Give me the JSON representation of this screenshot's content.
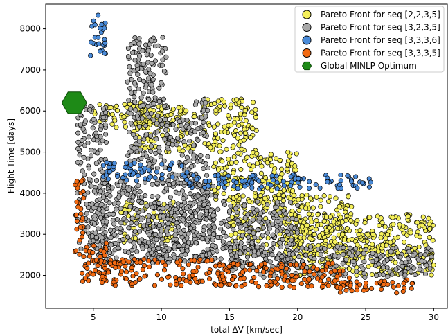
{
  "chart_data": {
    "type": "scatter",
    "title": "",
    "xlabel": "total ΔV [km/sec]",
    "ylabel": "Flight Time [days]",
    "xlim": [
      1.5,
      31
    ],
    "ylim": [
      1200,
      8600
    ],
    "xticks": [
      5,
      10,
      15,
      20,
      25,
      30
    ],
    "yticks": [
      2000,
      3000,
      4000,
      5000,
      6000,
      7000,
      8000
    ],
    "grid": false,
    "legend_position": "top-right",
    "series": [
      {
        "name": "Pareto Front for seq [2,2,3,5]",
        "color": "#f5f05a",
        "marker": "circle",
        "regions": [
          [
            5.0,
            6200,
            10.5,
            5600
          ],
          [
            13.0,
            6300,
            17.0,
            5000
          ],
          [
            13.5,
            5000,
            20.0,
            3800
          ],
          [
            15.0,
            4000,
            24.0,
            2500
          ],
          [
            19.0,
            3500,
            30.0,
            2000
          ],
          [
            8.0,
            6100,
            12.5,
            5000
          ],
          [
            7.0,
            3800,
            11.0,
            2800
          ],
          [
            24.0,
            3000,
            27.0,
            2600
          ]
        ]
      },
      {
        "name": "Pareto Front for seq [3,2,3,5]",
        "color": "#a8a8a8",
        "marker": "circle",
        "regions": [
          [
            3.8,
            6200,
            6.0,
            2300
          ],
          [
            7.5,
            7800,
            10.5,
            4600
          ],
          [
            5.0,
            4300,
            14.0,
            2300
          ],
          [
            9.0,
            3800,
            20.0,
            2300
          ],
          [
            15.0,
            2700,
            30.0,
            1950
          ],
          [
            12.5,
            6300,
            13.5,
            3500
          ],
          [
            10.5,
            5800,
            12.5,
            4200
          ]
        ]
      },
      {
        "name": "Pareto Front for seq [3,3,3,6]",
        "color": "#4a8bd8",
        "marker": "circle",
        "regions": [
          [
            4.7,
            8350,
            5.9,
            7350
          ],
          [
            5.7,
            4750,
            12.0,
            4300
          ],
          [
            12.0,
            4450,
            25.5,
            4100
          ]
        ]
      },
      {
        "name": "Pareto Front for seq [3,3,3,5]",
        "color": "#f26a12",
        "marker": "circle",
        "regions": [
          [
            3.6,
            4350,
            4.3,
            2400
          ],
          [
            4.0,
            2800,
            6.0,
            1850
          ],
          [
            5.5,
            2400,
            15.0,
            1750
          ],
          [
            14.0,
            2300,
            24.0,
            1700
          ],
          [
            23.0,
            1900,
            28.5,
            1550
          ]
        ]
      },
      {
        "name": "Global MINLP Optimum",
        "color": "#1e8a17",
        "marker": "hexagon",
        "points": [
          [
            3.6,
            6200
          ]
        ]
      }
    ]
  }
}
